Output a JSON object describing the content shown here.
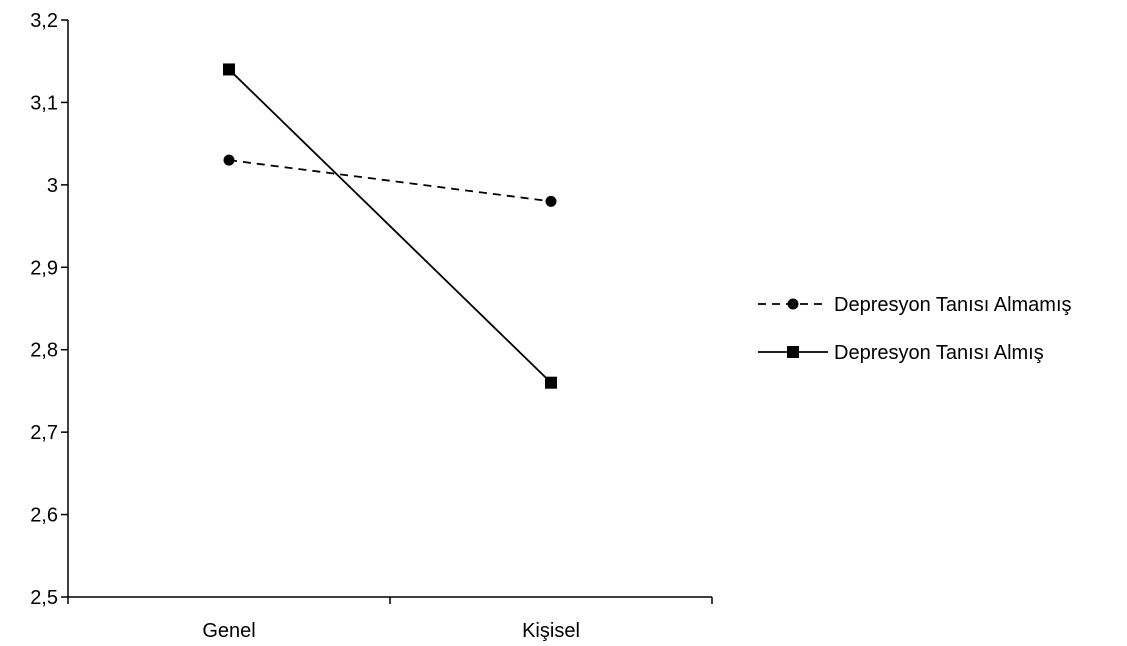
{
  "chart_data": {
    "type": "line",
    "title": "",
    "xlabel": "",
    "ylabel": "",
    "categories": [
      "Genel",
      "Kişisel"
    ],
    "ylim": [
      2.5,
      3.2
    ],
    "yticks": [
      "2,5",
      "2,6",
      "2,7",
      "2,8",
      "2,9",
      "3",
      "3,1",
      "3,2"
    ],
    "grid": false,
    "legend_position": "right",
    "series": [
      {
        "name": "Depresyon Tanısı Almamış",
        "values": [
          3.03,
          2.98
        ],
        "line_style": "dashed",
        "marker": "circle",
        "color": "#000000"
      },
      {
        "name": "Depresyon Tanısı Almış",
        "values": [
          3.14,
          2.76
        ],
        "line_style": "solid",
        "marker": "square",
        "color": "#000000"
      }
    ]
  }
}
